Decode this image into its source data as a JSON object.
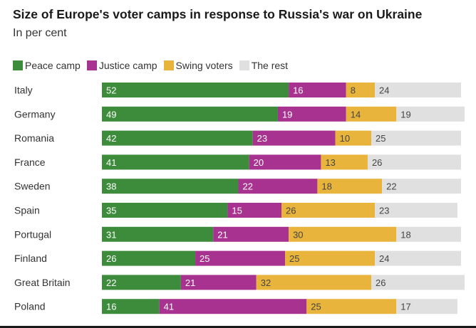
{
  "chart_data": {
    "type": "bar",
    "orientation": "horizontal",
    "stacked": true,
    "title": "Size of Europe's voter camps in response to Russia's war on Ukraine",
    "subtitle": "In per cent",
    "legend_position": "top-left",
    "grid": false,
    "xlim": [
      0,
      100
    ],
    "categories": [
      "Italy",
      "Germany",
      "Romania",
      "France",
      "Sweden",
      "Spain",
      "Portugal",
      "Finland",
      "Great Britain",
      "Poland"
    ],
    "series": [
      {
        "name": "Peace camp",
        "color": "#3d8c3c",
        "label_color": "#ffffff",
        "values": [
          52,
          49,
          42,
          41,
          38,
          35,
          31,
          26,
          22,
          16
        ]
      },
      {
        "name": "Justice camp",
        "color": "#a8328f",
        "label_color": "#ffffff",
        "values": [
          16,
          19,
          23,
          20,
          22,
          15,
          21,
          25,
          21,
          41
        ]
      },
      {
        "name": "Swing voters",
        "color": "#e9b43c",
        "label_color": "#444444",
        "values": [
          8,
          14,
          10,
          13,
          18,
          26,
          30,
          25,
          32,
          25
        ]
      },
      {
        "name": "The rest",
        "color": "#e0e0e0",
        "label_color": "#444444",
        "values": [
          24,
          19,
          25,
          26,
          22,
          23,
          18,
          24,
          26,
          17
        ]
      }
    ]
  }
}
